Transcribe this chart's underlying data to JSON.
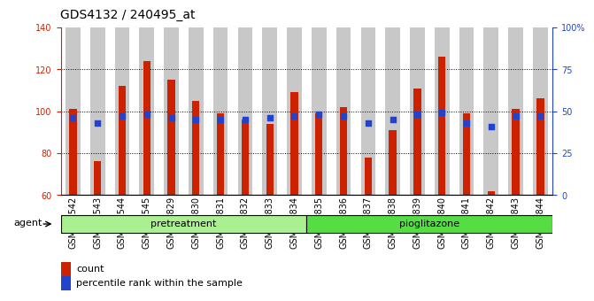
{
  "title": "GDS4132 / 240495_at",
  "samples": [
    "GSM201542",
    "GSM201543",
    "GSM201544",
    "GSM201545",
    "GSM201829",
    "GSM201830",
    "GSM201831",
    "GSM201832",
    "GSM201833",
    "GSM201834",
    "GSM201835",
    "GSM201836",
    "GSM201837",
    "GSM201838",
    "GSM201839",
    "GSM201840",
    "GSM201841",
    "GSM201842",
    "GSM201843",
    "GSM201844"
  ],
  "bar_values": [
    101,
    76,
    112,
    124,
    115,
    105,
    99,
    96,
    94,
    109,
    99,
    102,
    78,
    91,
    111,
    126,
    99,
    62,
    101,
    106
  ],
  "dot_values": [
    46,
    43,
    47,
    48,
    46,
    45,
    45,
    45,
    46,
    47,
    48,
    47,
    43,
    45,
    48,
    49,
    43,
    41,
    47,
    47
  ],
  "ylim_left": [
    60,
    140
  ],
  "ylim_right": [
    0,
    100
  ],
  "yticks_left": [
    60,
    80,
    100,
    120,
    140
  ],
  "yticks_right": [
    0,
    25,
    50,
    75,
    100
  ],
  "ytick_labels_right": [
    "0",
    "25",
    "50",
    "75",
    "100%"
  ],
  "bar_color": "#cc2200",
  "dot_color": "#2244cc",
  "pretreatment_count": 10,
  "pretreatment_label": "pretreatment",
  "pioglitazone_label": "pioglitazone",
  "agent_label": "agent",
  "legend_count_label": "count",
  "legend_pct_label": "percentile rank within the sample",
  "bar_bg_color": "#c8c8c8",
  "group1_bg": "#aaf090",
  "group2_bg": "#55dd44",
  "title_fontsize": 10,
  "tick_fontsize": 7,
  "axis_color_left": "#cc2200",
  "axis_color_right": "#2244cc"
}
